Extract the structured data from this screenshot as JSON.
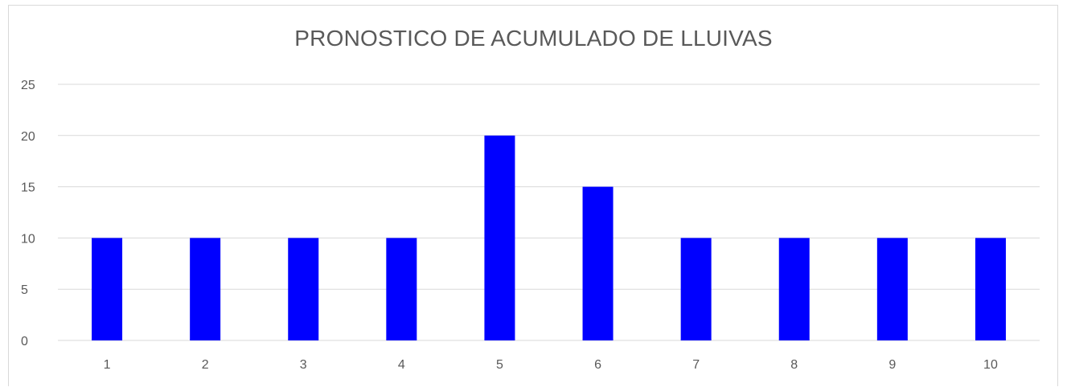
{
  "chart_data": {
    "type": "bar",
    "title": "PRONOSTICO DE ACUMULADO DE LLUIVAS",
    "xlabel": "",
    "ylabel": "",
    "categories": [
      "1",
      "2",
      "3",
      "4",
      "5",
      "6",
      "7",
      "8",
      "9",
      "10"
    ],
    "values": [
      10,
      10,
      10,
      10,
      20,
      15,
      10,
      10,
      10,
      10
    ],
    "ylim": [
      0,
      25
    ],
    "yticks": [
      "0",
      "5",
      "10",
      "15",
      "20",
      "25"
    ],
    "grid": true,
    "legend": "none",
    "bar_color": "#0000ff",
    "grid_color": "#d9d9d9",
    "text_color": "#595959"
  }
}
